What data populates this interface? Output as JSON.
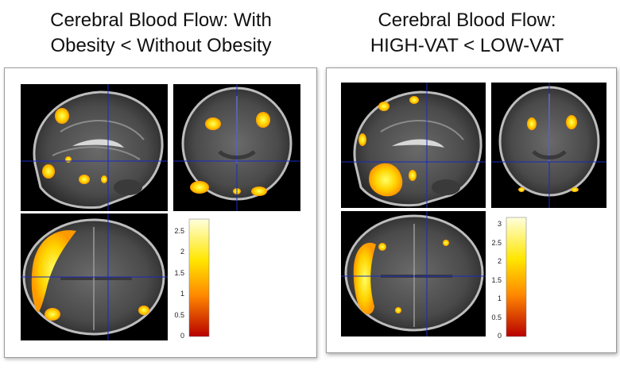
{
  "left_figure": {
    "title_line1": "Cerebral Blood Flow: With",
    "title_line2": "Obesity < Without Obesity",
    "colorbar": {
      "ticks": [
        "2.5",
        "2",
        "1.5",
        "1",
        "0.5",
        "0"
      ],
      "max": 2.8
    }
  },
  "right_figure": {
    "title_line1": "Cerebral Blood Flow:",
    "title_line2": "HIGH-VAT < LOW-VAT",
    "colorbar": {
      "ticks": [
        "3",
        "2.5",
        "2",
        "1.5",
        "1",
        "0.5",
        "0"
      ],
      "max": 3.2
    }
  },
  "colors": {
    "colormap_top": "#ffffcc",
    "colormap_mid": "#ffdd00",
    "colormap_low": "#ff6600",
    "colormap_bottom": "#cc0000",
    "crosshair": "#1a2bbf",
    "background": "#000000"
  }
}
